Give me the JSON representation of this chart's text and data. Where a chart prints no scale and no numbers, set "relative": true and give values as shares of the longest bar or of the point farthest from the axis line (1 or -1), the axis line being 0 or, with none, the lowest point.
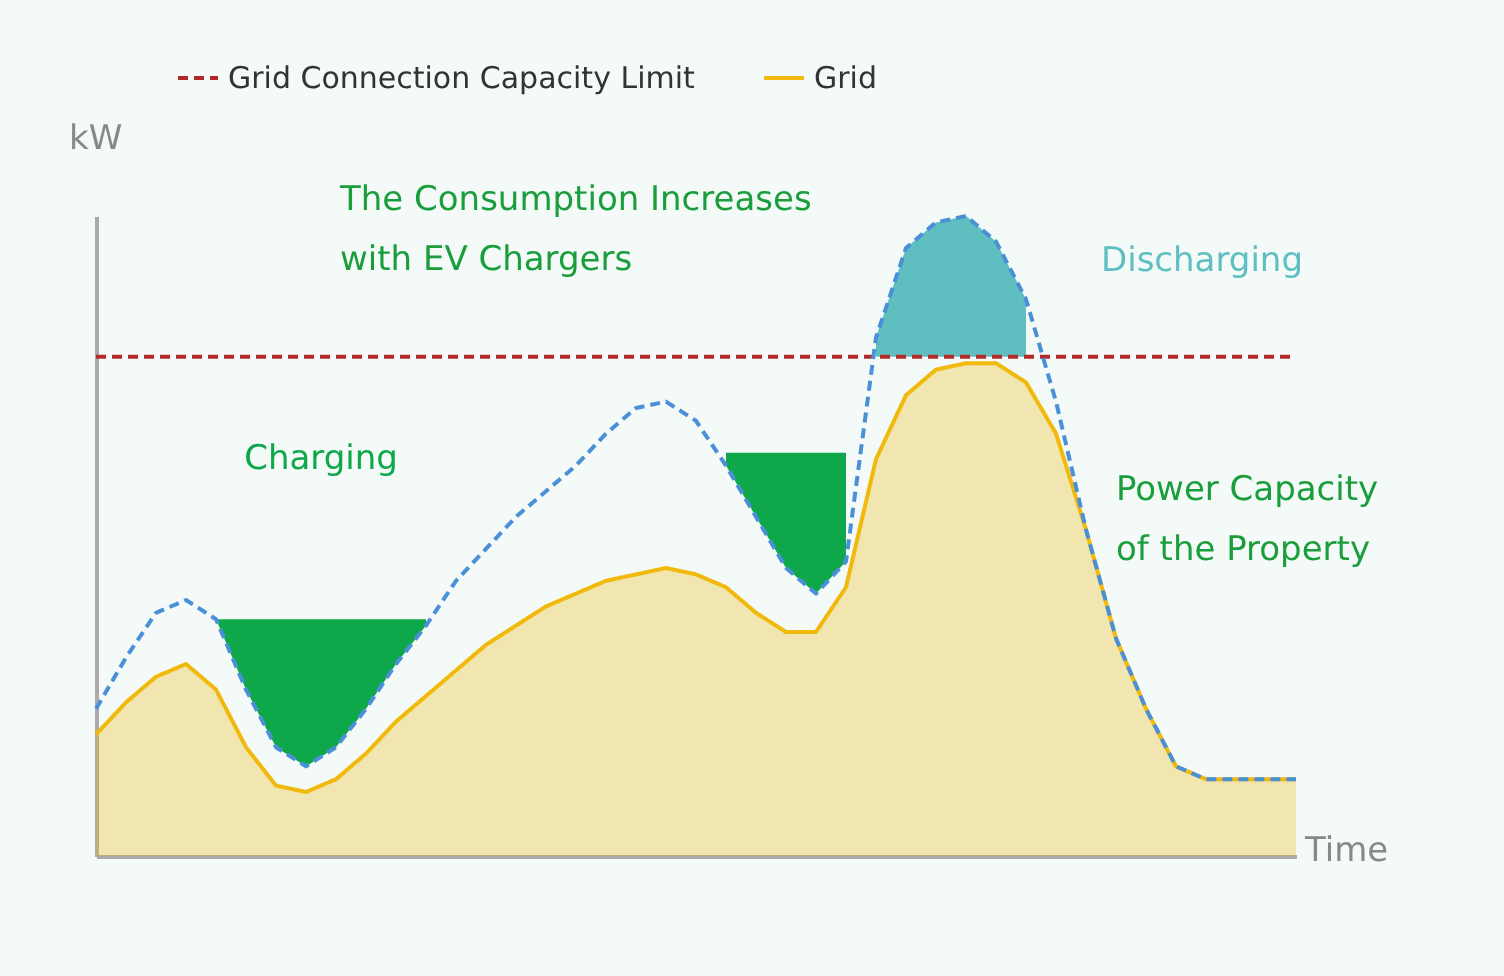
{
  "chart_data": {
    "type": "line",
    "relative": true,
    "xlabel": "Time",
    "ylabel": "kW",
    "legend": "top",
    "grid": false,
    "tick_labels": false,
    "categories": [
      null,
      null,
      null,
      null,
      null,
      null,
      null,
      null,
      null,
      null,
      null,
      null,
      null,
      null,
      null,
      null,
      null,
      null,
      null,
      null,
      null,
      null,
      null,
      null,
      null,
      null,
      null,
      null,
      null,
      null,
      null,
      null,
      null,
      null,
      null,
      null,
      null,
      null,
      null,
      null,
      null
    ],
    "series": [
      {
        "name": "Grid",
        "type": "area",
        "color": "#f0b90b",
        "values": [
          0.19,
          0.24,
          0.28,
          0.3,
          0.26,
          0.17,
          0.11,
          0.1,
          0.12,
          0.16,
          0.21,
          0.25,
          0.29,
          0.33,
          0.36,
          0.39,
          0.41,
          0.43,
          0.44,
          0.45,
          0.44,
          0.42,
          0.38,
          0.35,
          0.35,
          0.42,
          0.62,
          0.72,
          0.76,
          0.77,
          0.77,
          0.74,
          0.66,
          0.51,
          0.34,
          0.23,
          0.14,
          0.12,
          0.12,
          0.12,
          0.12
        ]
      },
      {
        "line_style": "dashed",
        "color": "#4a90d9",
        "values": [
          0.23,
          0.31,
          0.38,
          0.4,
          0.37,
          0.26,
          0.17,
          0.14,
          0.17,
          0.23,
          0.3,
          0.36,
          0.43,
          0.48,
          0.53,
          0.57,
          0.61,
          0.66,
          0.7,
          0.71,
          0.68,
          0.61,
          0.53,
          0.45,
          0.41,
          0.46,
          0.81,
          0.95,
          0.99,
          1,
          0.96,
          0.87,
          0.71,
          0.51,
          0.34,
          0.23,
          0.14,
          0.12,
          0.12,
          0.12,
          0.12
        ]
      },
      {
        "name": "Charging",
        "type": "area",
        "color": "#0ea84b",
        "values": [
          null,
          null,
          null,
          null,
          0.37,
          0.37,
          0.37,
          0.37,
          0.37,
          0.37,
          0.37,
          0.37,
          null,
          null,
          null,
          null,
          null,
          null,
          null,
          null,
          null,
          0.63,
          0.63,
          0.63,
          0.63,
          0.63,
          null,
          null,
          null,
          null,
          null,
          null,
          null,
          null,
          null,
          null,
          null,
          null,
          null,
          null,
          null
        ]
      },
      {
        "name": "Discharging",
        "type": "area",
        "color": "#5fbfc0",
        "values": [
          null,
          null,
          null,
          null,
          null,
          null,
          null,
          null,
          null,
          null,
          null,
          null,
          null,
          null,
          null,
          null,
          null,
          null,
          null,
          null,
          null,
          null,
          null,
          null,
          null,
          null,
          0.81,
          0.95,
          0.99,
          1,
          0.96,
          0.87,
          null,
          null,
          null,
          null,
          null,
          null,
          null,
          null,
          null
        ]
      }
    ],
    "ref_lines": [
      {
        "axis": "y",
        "value": 0.78,
        "label": "Grid Connection Capacity Limit",
        "color": "#b22a2a",
        "line_style": "dashed"
      }
    ],
    "annotations": [
      "The Consumption Increases with EV Chargers",
      "Power Capacity of the Property"
    ]
  }
}
